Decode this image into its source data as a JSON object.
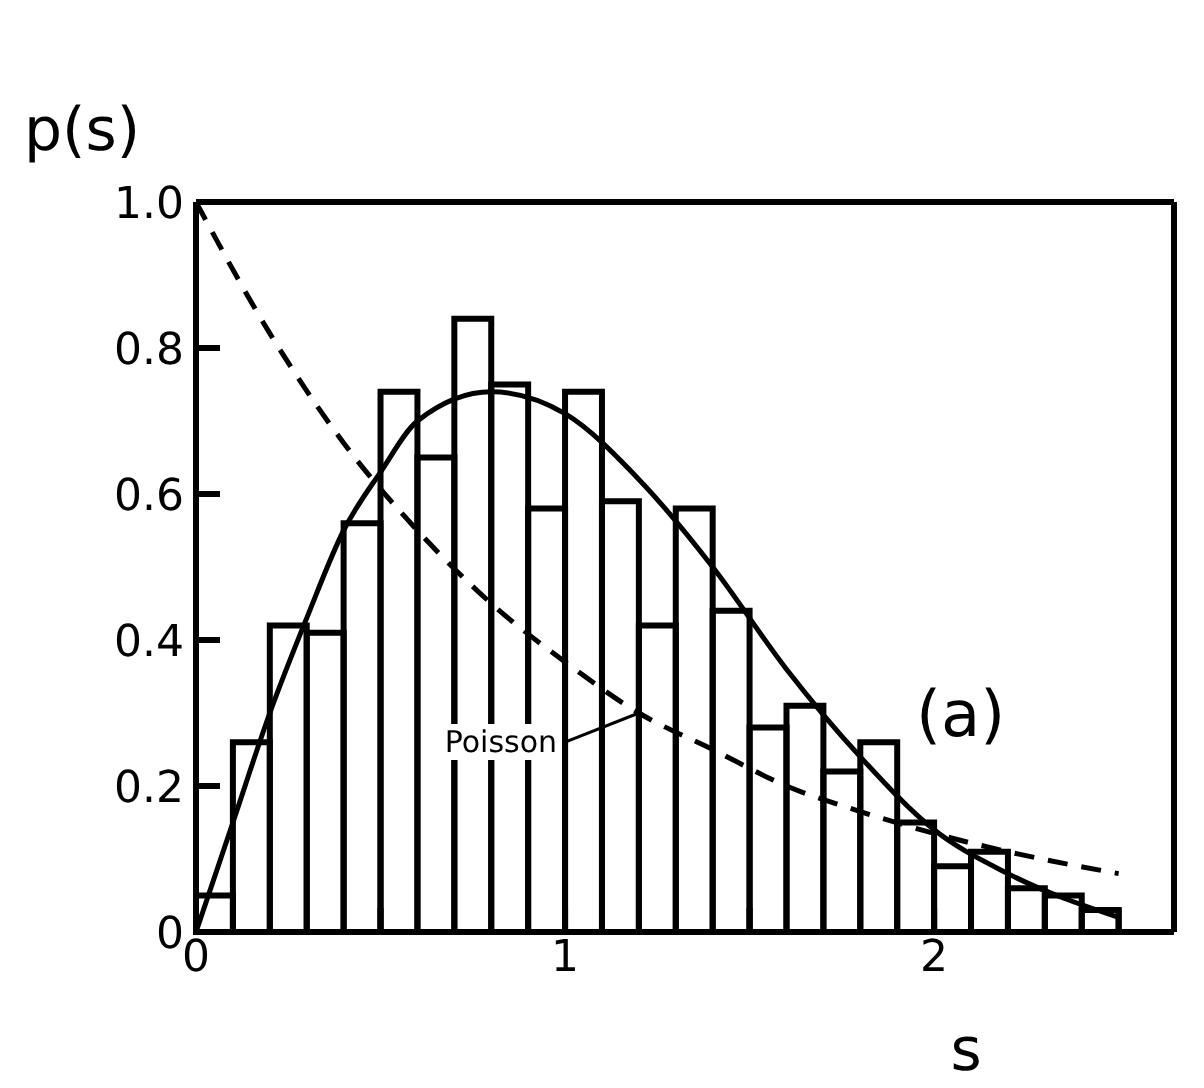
{
  "chart_data": {
    "type": "histogram",
    "xlabel": "s",
    "ylabel": "p(s)",
    "annotations": [
      "(a)"
    ],
    "bins": [
      0,
      0.1,
      0.2,
      0.3,
      0.4,
      0.5,
      0.6,
      0.7,
      0.8,
      0.9,
      1.0,
      1.1,
      1.2,
      1.3,
      1.4,
      1.5,
      1.6,
      1.7,
      1.8,
      1.9,
      2.0,
      2.1,
      2.2,
      2.3,
      2.4,
      2.5
    ],
    "values": [
      0.05,
      0.26,
      0.42,
      0.41,
      0.56,
      0.74,
      0.65,
      0.84,
      0.75,
      0.58,
      0.74,
      0.59,
      0.42,
      0.58,
      0.44,
      0.28,
      0.31,
      0.22,
      0.26,
      0.15,
      0.09,
      0.11,
      0.06,
      0.05,
      0.03
    ],
    "color": "#000000",
    "series": [
      {
        "type": "line",
        "color": "#000000",
        "line_style": "solid",
        "x": [
          0,
          0.1,
          0.2,
          0.3,
          0.4,
          0.5,
          0.6,
          0.8,
          1.0,
          1.2,
          1.4,
          1.6,
          1.8,
          2.0,
          2.2,
          2.5
        ],
        "values": [
          0.0,
          0.15,
          0.3,
          0.43,
          0.55,
          0.63,
          0.7,
          0.74,
          0.71,
          0.62,
          0.5,
          0.36,
          0.24,
          0.14,
          0.08,
          0.02
        ]
      },
      {
        "type": "line",
        "name": "Poisson",
        "color": "#000000",
        "line_style": "dashed",
        "x": [
          0,
          0.2,
          0.4,
          0.6,
          0.8,
          1.0,
          1.2,
          1.4,
          1.6,
          1.8,
          2.0,
          2.2,
          2.5
        ],
        "values": [
          1.0,
          0.82,
          0.67,
          0.55,
          0.45,
          0.37,
          0.3,
          0.25,
          0.2,
          0.165,
          0.135,
          0.11,
          0.08
        ]
      }
    ],
    "xlim": [
      0,
      2.65
    ],
    "xticks": [
      0,
      {
        "value": 0.5,
        "label": null
      },
      1,
      {
        "value": 1.5,
        "label": null
      },
      2,
      {
        "value": 2.5,
        "label": null
      }
    ],
    "ylim": [
      0,
      1
    ],
    "yticks": [
      0,
      0.2,
      0.4,
      0.6,
      0.8,
      {
        "value": 1,
        "label": "1.0"
      }
    ],
    "grid": false
  }
}
